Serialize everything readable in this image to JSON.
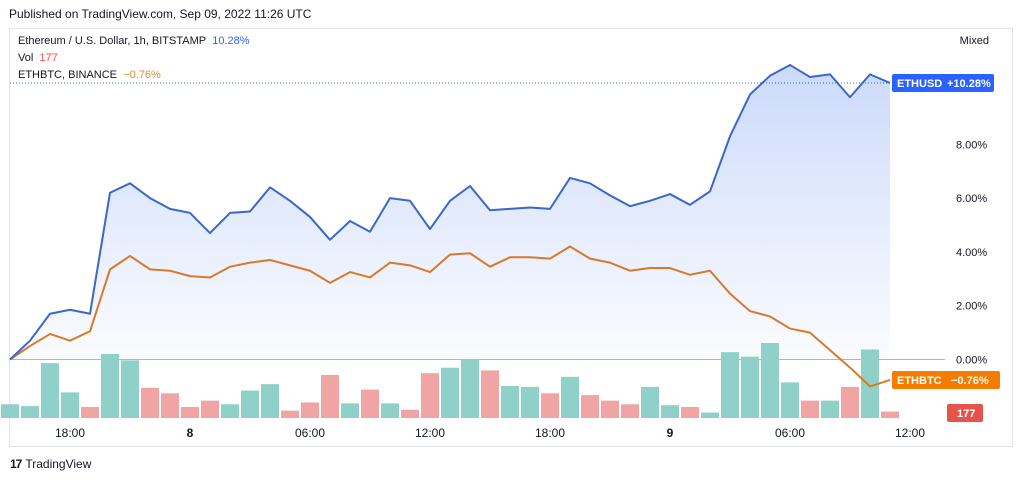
{
  "header": {
    "published": "Published on TradingView.com, Sep 09, 2022 11:26 UTC"
  },
  "legend": {
    "eth_name": "Ethereum / U.S. Dollar, 1h, BITSTAMP",
    "eth_value": "10.28%",
    "vol_name": "Vol",
    "vol_value": "177",
    "ethbtc_name": "ETHBTC, BINANCE",
    "ethbtc_value": "−0.76%"
  },
  "scale_mode": "Mixed",
  "footer": {
    "brand": "TradingView",
    "logo": "17"
  },
  "colors": {
    "eth": "#3a67c9",
    "ethbtc": "#d9792a",
    "vol_up": "#8fd0c8",
    "vol_down": "#f1a4a4",
    "badge_blue": "#2962ff",
    "badge_orange": "#f57c00",
    "badge_red": "#e5534b",
    "area_top": "#c9d8fa"
  },
  "chart_data": {
    "type": "line",
    "y_unit": "%",
    "ylim": [
      -2.0,
      11.8
    ],
    "y_ticks": [
      "8.00%",
      "6.00%",
      "4.00%",
      "2.00%",
      "0.00%"
    ],
    "y_tick_values": [
      8,
      6,
      4,
      2,
      0
    ],
    "x_tick_labels": [
      "18:00",
      "8",
      "06:00",
      "12:00",
      "18:00",
      "9",
      "06:00",
      "12:00"
    ],
    "x_tick_hours": [
      0,
      6,
      12,
      18,
      24,
      30,
      36,
      42
    ],
    "x_hours": [
      -3,
      -2,
      -1,
      0,
      1,
      2,
      3,
      4,
      5,
      6,
      7,
      8,
      9,
      10,
      11,
      12,
      13,
      14,
      15,
      16,
      17,
      18,
      19,
      20,
      21,
      22,
      23,
      24,
      25,
      26,
      27,
      28,
      29,
      30,
      31,
      32,
      33,
      34,
      35,
      36,
      37,
      38,
      39,
      40,
      41
    ],
    "series": [
      {
        "name": "Ethereum / U.S. Dollar, 1h, BITSTAMP",
        "values": [
          0.0,
          0.7,
          1.7,
          1.85,
          1.7,
          6.2,
          6.55,
          6.0,
          5.6,
          5.45,
          4.7,
          5.45,
          5.5,
          6.4,
          5.9,
          5.3,
          4.45,
          5.15,
          4.75,
          6.0,
          5.9,
          4.85,
          5.9,
          6.45,
          5.55,
          5.6,
          5.65,
          5.6,
          6.75,
          6.55,
          6.1,
          5.7,
          5.9,
          6.15,
          5.75,
          6.25,
          8.3,
          9.85,
          10.55,
          10.95,
          10.5,
          10.6,
          9.75,
          10.6,
          10.28
        ]
      },
      {
        "name": "ETHBTC, BINANCE",
        "values": [
          0.0,
          0.5,
          0.95,
          0.7,
          1.05,
          3.35,
          3.85,
          3.35,
          3.3,
          3.1,
          3.05,
          3.45,
          3.6,
          3.7,
          3.5,
          3.3,
          2.85,
          3.25,
          3.05,
          3.6,
          3.5,
          3.25,
          3.9,
          3.95,
          3.45,
          3.8,
          3.8,
          3.75,
          4.2,
          3.75,
          3.6,
          3.3,
          3.4,
          3.4,
          3.15,
          3.3,
          2.45,
          1.8,
          1.6,
          1.15,
          1.0,
          0.35,
          -0.3,
          -1.0,
          -0.76
        ]
      }
    ],
    "volume": {
      "name": "Vol",
      "values": [
        15,
        13,
        60,
        28,
        12,
        70,
        63,
        33,
        27,
        12,
        19,
        15,
        30,
        37,
        8,
        17,
        47,
        16,
        31,
        16,
        9,
        49,
        55,
        64,
        52,
        35,
        34,
        27,
        45,
        25,
        19,
        15,
        34,
        14,
        12,
        6,
        72,
        67,
        82,
        39,
        19,
        19,
        34,
        75,
        7
      ],
      "direction": [
        "up",
        "up",
        "up",
        "up",
        "down",
        "up",
        "up",
        "down",
        "down",
        "down",
        "down",
        "up",
        "up",
        "up",
        "down",
        "down",
        "down",
        "up",
        "down",
        "up",
        "down",
        "down",
        "up",
        "up",
        "down",
        "up",
        "up",
        "down",
        "up",
        "down",
        "down",
        "down",
        "up",
        "up",
        "down",
        "up",
        "up",
        "up",
        "up",
        "up",
        "down",
        "up",
        "down",
        "up",
        "down"
      ]
    },
    "last_labels": {
      "eth_symbol": "ETHUSD",
      "eth_last": "+10.28%",
      "ethbtc_symbol": "ETHBTC",
      "ethbtc_last": "−0.76%",
      "vol_last": "177"
    },
    "title": "",
    "xlabel": "",
    "ylabel": "",
    "grid": false,
    "legend_placement": "top-left"
  }
}
